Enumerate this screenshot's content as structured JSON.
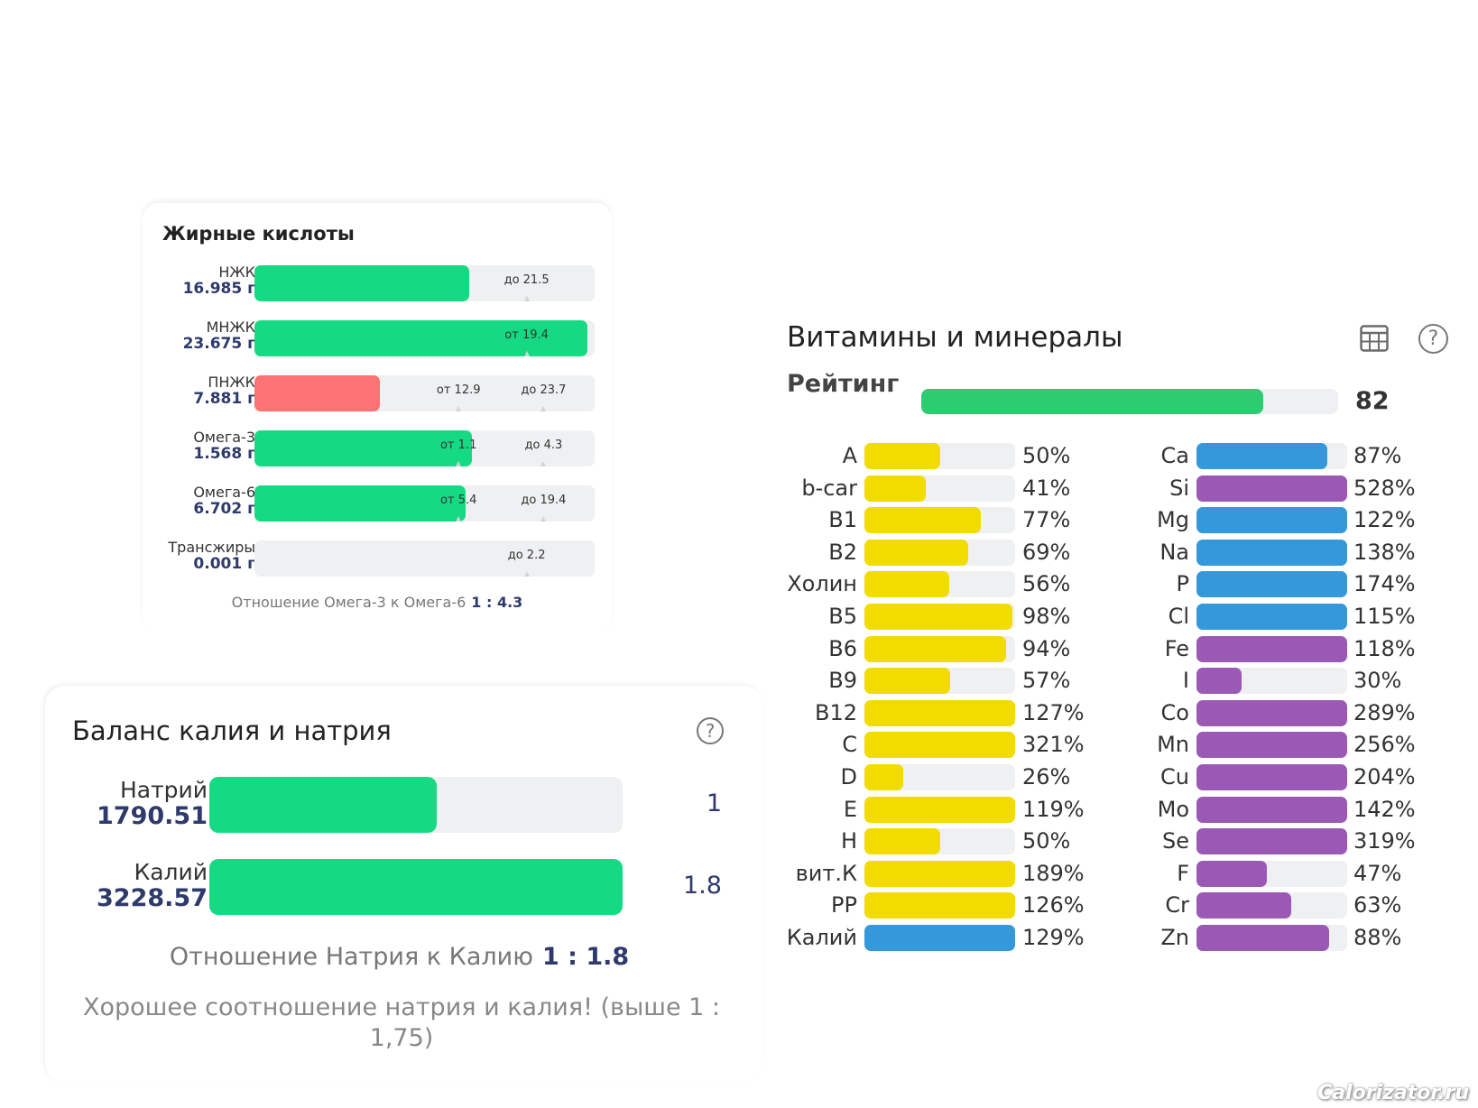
{
  "fatty_acids": {
    "title": "Жирные кислоты",
    "rows": [
      {
        "name": "НЖК",
        "value": "16.985 г",
        "fill": 0.63,
        "color": "#16da83",
        "markers": [
          {
            "label": "до 21.5",
            "pos": 0.8
          }
        ]
      },
      {
        "name": "МНЖК",
        "value": "23.675 г",
        "fill": 0.98,
        "color": "#16da83",
        "markers": [
          {
            "label": "от 19.4",
            "pos": 0.8
          }
        ]
      },
      {
        "name": "ПНЖК",
        "value": "7.881 г",
        "fill": 0.37,
        "color": "#fd7272",
        "markers": [
          {
            "label": "от 12.9",
            "pos": 0.6
          },
          {
            "label": "до 23.7",
            "pos": 0.85
          }
        ]
      },
      {
        "name": "Омега-3",
        "value": "1.568 г",
        "fill": 0.64,
        "color": "#16da83",
        "markers": [
          {
            "label": "от 1.1",
            "pos": 0.6
          },
          {
            "label": "до 4.3",
            "pos": 0.85
          }
        ]
      },
      {
        "name": "Омега-6",
        "value": "6.702 г",
        "fill": 0.62,
        "color": "#16da83",
        "markers": [
          {
            "label": "от 5.4",
            "pos": 0.6
          },
          {
            "label": "до 19.4",
            "pos": 0.85
          }
        ]
      },
      {
        "name": "Трансжиры",
        "value": "0.001 г",
        "fill": 0.0,
        "color": "#16da83",
        "markers": [
          {
            "label": "до 2.2",
            "pos": 0.8
          }
        ]
      }
    ],
    "ratio_label": "Отношение Омега-3 к Омега-6",
    "ratio_value": "1 : 4.3"
  },
  "sodium_potassium": {
    "title": "Баланс калия и натрия",
    "help_icon": "question-circle-icon",
    "rows": [
      {
        "name": "Натрий",
        "value": "1790.51",
        "fill": 0.55,
        "ratio": "1"
      },
      {
        "name": "Калий",
        "value": "3228.57",
        "fill": 1.0,
        "ratio": "1.8"
      }
    ],
    "ratio_label": "Отношение Натрия к Калию",
    "ratio_value": "1 : 1.8",
    "verdict": "Хорошее соотношение натрия и калия! (выше 1 : 1,75)"
  },
  "vitamins_minerals": {
    "title": "Витамины и минералы",
    "table_icon": "table-icon",
    "help_icon": "question-circle-icon",
    "rating_label": "Рейтинг",
    "rating_value": "82",
    "rating_fill": 0.82,
    "colors": {
      "vitamin": "#f2dc00",
      "macro": "#3498db",
      "micro": "#9b59b6",
      "rating": "#2ecc71"
    },
    "vitamins": [
      {
        "name": "A",
        "pct": "50%",
        "fill": 0.5,
        "kind": "vitamin"
      },
      {
        "name": "b-car",
        "pct": "41%",
        "fill": 0.41,
        "kind": "vitamin"
      },
      {
        "name": "B1",
        "pct": "77%",
        "fill": 0.77,
        "kind": "vitamin"
      },
      {
        "name": "B2",
        "pct": "69%",
        "fill": 0.69,
        "kind": "vitamin"
      },
      {
        "name": "Холин",
        "pct": "56%",
        "fill": 0.56,
        "kind": "vitamin"
      },
      {
        "name": "B5",
        "pct": "98%",
        "fill": 0.98,
        "kind": "vitamin"
      },
      {
        "name": "B6",
        "pct": "94%",
        "fill": 0.94,
        "kind": "vitamin"
      },
      {
        "name": "B9",
        "pct": "57%",
        "fill": 0.57,
        "kind": "vitamin"
      },
      {
        "name": "B12",
        "pct": "127%",
        "fill": 1.0,
        "kind": "vitamin"
      },
      {
        "name": "C",
        "pct": "321%",
        "fill": 1.0,
        "kind": "vitamin"
      },
      {
        "name": "D",
        "pct": "26%",
        "fill": 0.26,
        "kind": "vitamin"
      },
      {
        "name": "E",
        "pct": "119%",
        "fill": 1.0,
        "kind": "vitamin"
      },
      {
        "name": "H",
        "pct": "50%",
        "fill": 0.5,
        "kind": "vitamin"
      },
      {
        "name": "вит.К",
        "pct": "189%",
        "fill": 1.0,
        "kind": "vitamin"
      },
      {
        "name": "PP",
        "pct": "126%",
        "fill": 1.0,
        "kind": "vitamin"
      },
      {
        "name": "Калий",
        "pct": "129%",
        "fill": 1.0,
        "kind": "macro"
      }
    ],
    "minerals": [
      {
        "name": "Ca",
        "pct": "87%",
        "fill": 0.87,
        "kind": "macro"
      },
      {
        "name": "Si",
        "pct": "528%",
        "fill": 1.0,
        "kind": "micro"
      },
      {
        "name": "Mg",
        "pct": "122%",
        "fill": 1.0,
        "kind": "macro"
      },
      {
        "name": "Na",
        "pct": "138%",
        "fill": 1.0,
        "kind": "macro"
      },
      {
        "name": "P",
        "pct": "174%",
        "fill": 1.0,
        "kind": "macro"
      },
      {
        "name": "Cl",
        "pct": "115%",
        "fill": 1.0,
        "kind": "macro"
      },
      {
        "name": "Fe",
        "pct": "118%",
        "fill": 1.0,
        "kind": "micro"
      },
      {
        "name": "I",
        "pct": "30%",
        "fill": 0.3,
        "kind": "micro"
      },
      {
        "name": "Co",
        "pct": "289%",
        "fill": 1.0,
        "kind": "micro"
      },
      {
        "name": "Mn",
        "pct": "256%",
        "fill": 1.0,
        "kind": "micro"
      },
      {
        "name": "Cu",
        "pct": "204%",
        "fill": 1.0,
        "kind": "micro"
      },
      {
        "name": "Mo",
        "pct": "142%",
        "fill": 1.0,
        "kind": "micro"
      },
      {
        "name": "Se",
        "pct": "319%",
        "fill": 1.0,
        "kind": "micro"
      },
      {
        "name": "F",
        "pct": "47%",
        "fill": 0.47,
        "kind": "micro"
      },
      {
        "name": "Cr",
        "pct": "63%",
        "fill": 0.63,
        "kind": "micro"
      },
      {
        "name": "Zn",
        "pct": "88%",
        "fill": 0.88,
        "kind": "micro"
      }
    ]
  },
  "watermark": "Calorizator.ru"
}
